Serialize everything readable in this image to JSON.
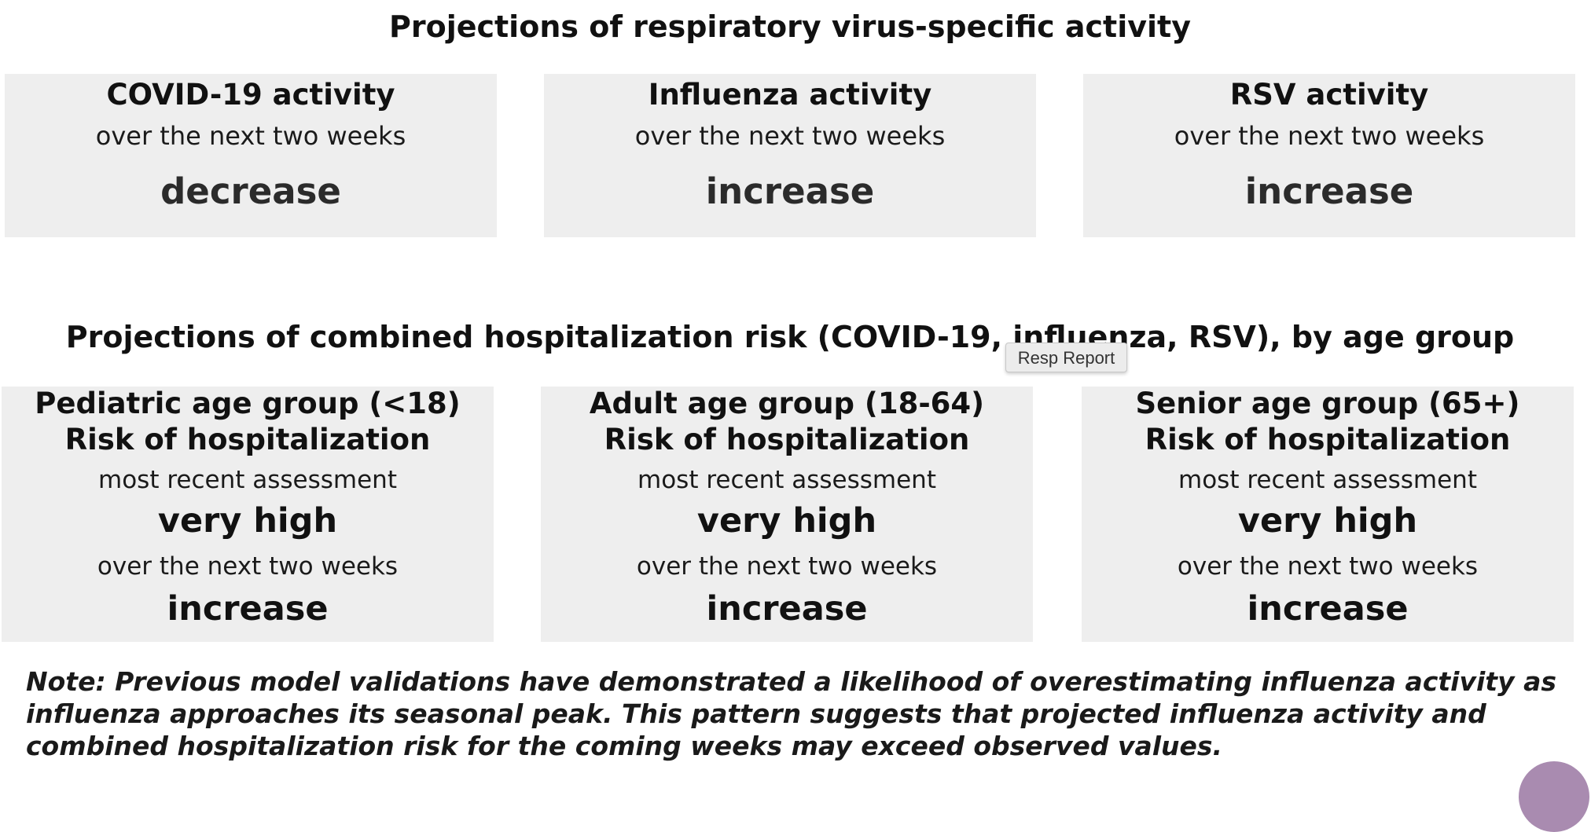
{
  "virus_section": {
    "title": "Projections of respiratory virus-specific activity",
    "cards": [
      {
        "title": "COVID-19 activity",
        "subtitle": "over the next two weeks",
        "value": "decrease"
      },
      {
        "title": "Influenza activity",
        "subtitle": "over the next two weeks",
        "value": "increase"
      },
      {
        "title": "RSV activity",
        "subtitle": "over the next two weeks",
        "value": "increase"
      }
    ]
  },
  "hospitalization_section": {
    "title": "Projections of combined hospitalization risk (COVID-19, influenza, RSV), by age group",
    "cards": [
      {
        "group": "Pediatric age group (<18)",
        "risk_label": "Risk of hospitalization",
        "recent_label": "most recent assessment",
        "recent_value": "very high",
        "next_label": "over the next two weeks",
        "next_value": "increase"
      },
      {
        "group": "Adult age group (18-64)",
        "risk_label": "Risk of hospitalization",
        "recent_label": "most recent assessment",
        "recent_value": "very high",
        "next_label": "over the next two weeks",
        "next_value": "increase"
      },
      {
        "group": "Senior age group (65+)",
        "risk_label": "Risk of hospitalization",
        "recent_label": "most recent assessment",
        "recent_value": "very high",
        "next_label": "over the next two weeks",
        "next_value": "increase"
      }
    ]
  },
  "tooltip": {
    "text": "Resp Report"
  },
  "note": {
    "text": "Note: Previous model validations have demonstrated a likelihood of overestimating influenza activity as influenza approaches its seasonal peak. This pattern suggests that projected influenza activity and combined hospitalization risk for the coming weeks may exceed observed values."
  },
  "colors": {
    "card_background": "#eeeeee",
    "corner_button": "#a98bb0"
  }
}
